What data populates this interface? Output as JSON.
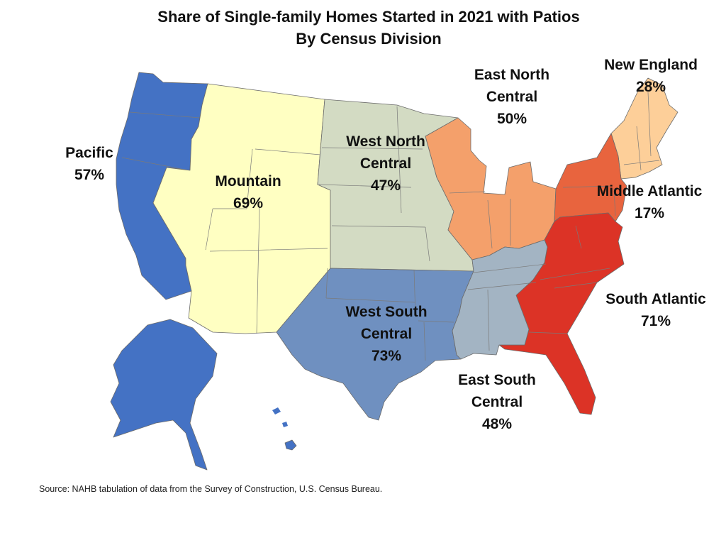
{
  "title": "Share of Single-family Homes Started in 2021 with Patios",
  "subtitle": "By Census Division",
  "source": "Source: NAHB tabulation of data from the Survey of Construction, U.S. Census Bureau.",
  "divisions": [
    {
      "name_lines": [
        "Pacific"
      ],
      "value": "57%",
      "color": "#4472c4"
    },
    {
      "name_lines": [
        "Mountain"
      ],
      "value": "69%",
      "color": "#ffffc2"
    },
    {
      "name_lines": [
        "West North",
        "Central"
      ],
      "value": "47%",
      "color": "#d3dbc3"
    },
    {
      "name_lines": [
        "East North",
        "Central"
      ],
      "value": "50%",
      "color": "#f4a06b"
    },
    {
      "name_lines": [
        "New England"
      ],
      "value": "28%",
      "color": "#fdcf99"
    },
    {
      "name_lines": [
        "Middle Atlantic"
      ],
      "value": "17%",
      "color": "#e8643e"
    },
    {
      "name_lines": [
        "South Atlantic"
      ],
      "value": "71%",
      "color": "#dc3326"
    },
    {
      "name_lines": [
        "West South",
        "Central"
      ],
      "value": "73%",
      "color": "#6f90c0"
    },
    {
      "name_lines": [
        "East South",
        "Central"
      ],
      "value": "48%",
      "color": "#a3b4c3"
    }
  ]
}
